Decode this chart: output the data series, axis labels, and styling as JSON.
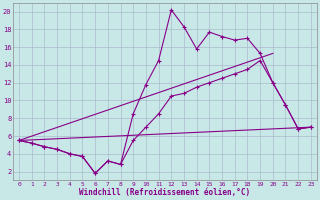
{
  "background_color": "#c8e8e8",
  "grid_color": "#aabbcc",
  "line_color": "#880088",
  "xlabel": "Windchill (Refroidissement éolien,°C)",
  "xlim": [
    -0.5,
    23.5
  ],
  "ylim": [
    1,
    21
  ],
  "xticks": [
    0,
    1,
    2,
    3,
    4,
    5,
    6,
    7,
    8,
    9,
    10,
    11,
    12,
    13,
    14,
    15,
    16,
    17,
    18,
    19,
    20,
    21,
    22,
    23
  ],
  "yticks": [
    2,
    4,
    6,
    8,
    10,
    12,
    14,
    16,
    18,
    20
  ],
  "curve1_x": [
    0,
    1,
    2,
    3,
    4,
    5,
    6,
    7,
    8,
    9,
    10,
    11,
    12,
    13,
    14,
    15,
    16,
    17,
    18,
    19,
    20,
    21,
    22,
    23
  ],
  "curve1_y": [
    5.5,
    5.2,
    4.8,
    4.5,
    4.0,
    3.7,
    1.8,
    3.2,
    2.8,
    8.5,
    11.8,
    14.5,
    20.2,
    18.3,
    15.8,
    17.7,
    17.2,
    16.8,
    17.0,
    15.3,
    12.0,
    9.5,
    6.8,
    7.0
  ],
  "curve2_x": [
    0,
    1,
    2,
    3,
    4,
    5,
    6,
    7,
    8,
    9,
    10,
    11,
    12,
    13,
    14,
    15,
    16,
    17,
    18,
    19,
    20,
    21,
    22,
    23
  ],
  "curve2_y": [
    5.5,
    5.2,
    4.8,
    4.5,
    4.0,
    3.7,
    1.8,
    3.2,
    2.8,
    5.5,
    7.0,
    8.5,
    10.5,
    10.8,
    11.5,
    12.0,
    12.5,
    13.0,
    13.5,
    14.5,
    12.0,
    9.5,
    6.8,
    7.0
  ],
  "line3_x": [
    0,
    23
  ],
  "line3_y": [
    5.5,
    7.0
  ],
  "line4_x": [
    0,
    20
  ],
  "line4_y": [
    5.5,
    15.3
  ]
}
